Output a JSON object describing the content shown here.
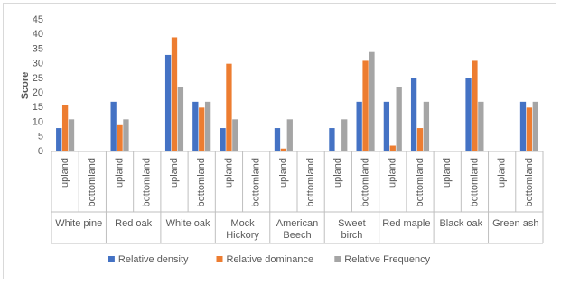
{
  "chart_data": {
    "type": "bar",
    "y_label": "Score",
    "groups": [
      {
        "name": "White pine",
        "categories": [
          "upland",
          "bottomland"
        ]
      },
      {
        "name": "Red oak",
        "categories": [
          "upland",
          "bottomland"
        ]
      },
      {
        "name": "White oak",
        "categories": [
          "upland",
          "bottomland"
        ]
      },
      {
        "name": "Mock Hickory",
        "categories": [
          "upland",
          "bottomland"
        ]
      },
      {
        "name": "American Beech",
        "categories": [
          "upland",
          "bottomland"
        ]
      },
      {
        "name": "Sweet birch",
        "categories": [
          "upland",
          "bottomland"
        ]
      },
      {
        "name": "Red maple",
        "categories": [
          "upland",
          "bottomland"
        ]
      },
      {
        "name": "Black oak",
        "categories": [
          "upland",
          "bottomland"
        ]
      },
      {
        "name": "Green ash",
        "categories": [
          "upland",
          "bottomland"
        ]
      }
    ],
    "series": [
      {
        "name": "Relative density",
        "color": "#4472c4",
        "values": [
          8,
          null,
          17,
          null,
          33,
          17,
          8,
          null,
          8,
          null,
          8,
          17,
          17,
          25,
          null,
          25,
          null,
          17
        ]
      },
      {
        "name": "Relative dominance",
        "color": "#ed7d31",
        "values": [
          16,
          null,
          9,
          null,
          39,
          15,
          30,
          null,
          1,
          null,
          null,
          31,
          2,
          8,
          null,
          31,
          null,
          15
        ]
      },
      {
        "name": "Relative Frequency",
        "color": "#a5a5a5",
        "values": [
          11,
          null,
          11,
          null,
          22,
          17,
          11,
          null,
          11,
          null,
          11,
          34,
          22,
          17,
          null,
          17,
          null,
          17
        ]
      }
    ],
    "ylim": [
      0,
      45
    ],
    "yticks": [
      0,
      5,
      10,
      15,
      20,
      25,
      30,
      35,
      40,
      45
    ],
    "grid": false,
    "legend": "bottom"
  }
}
